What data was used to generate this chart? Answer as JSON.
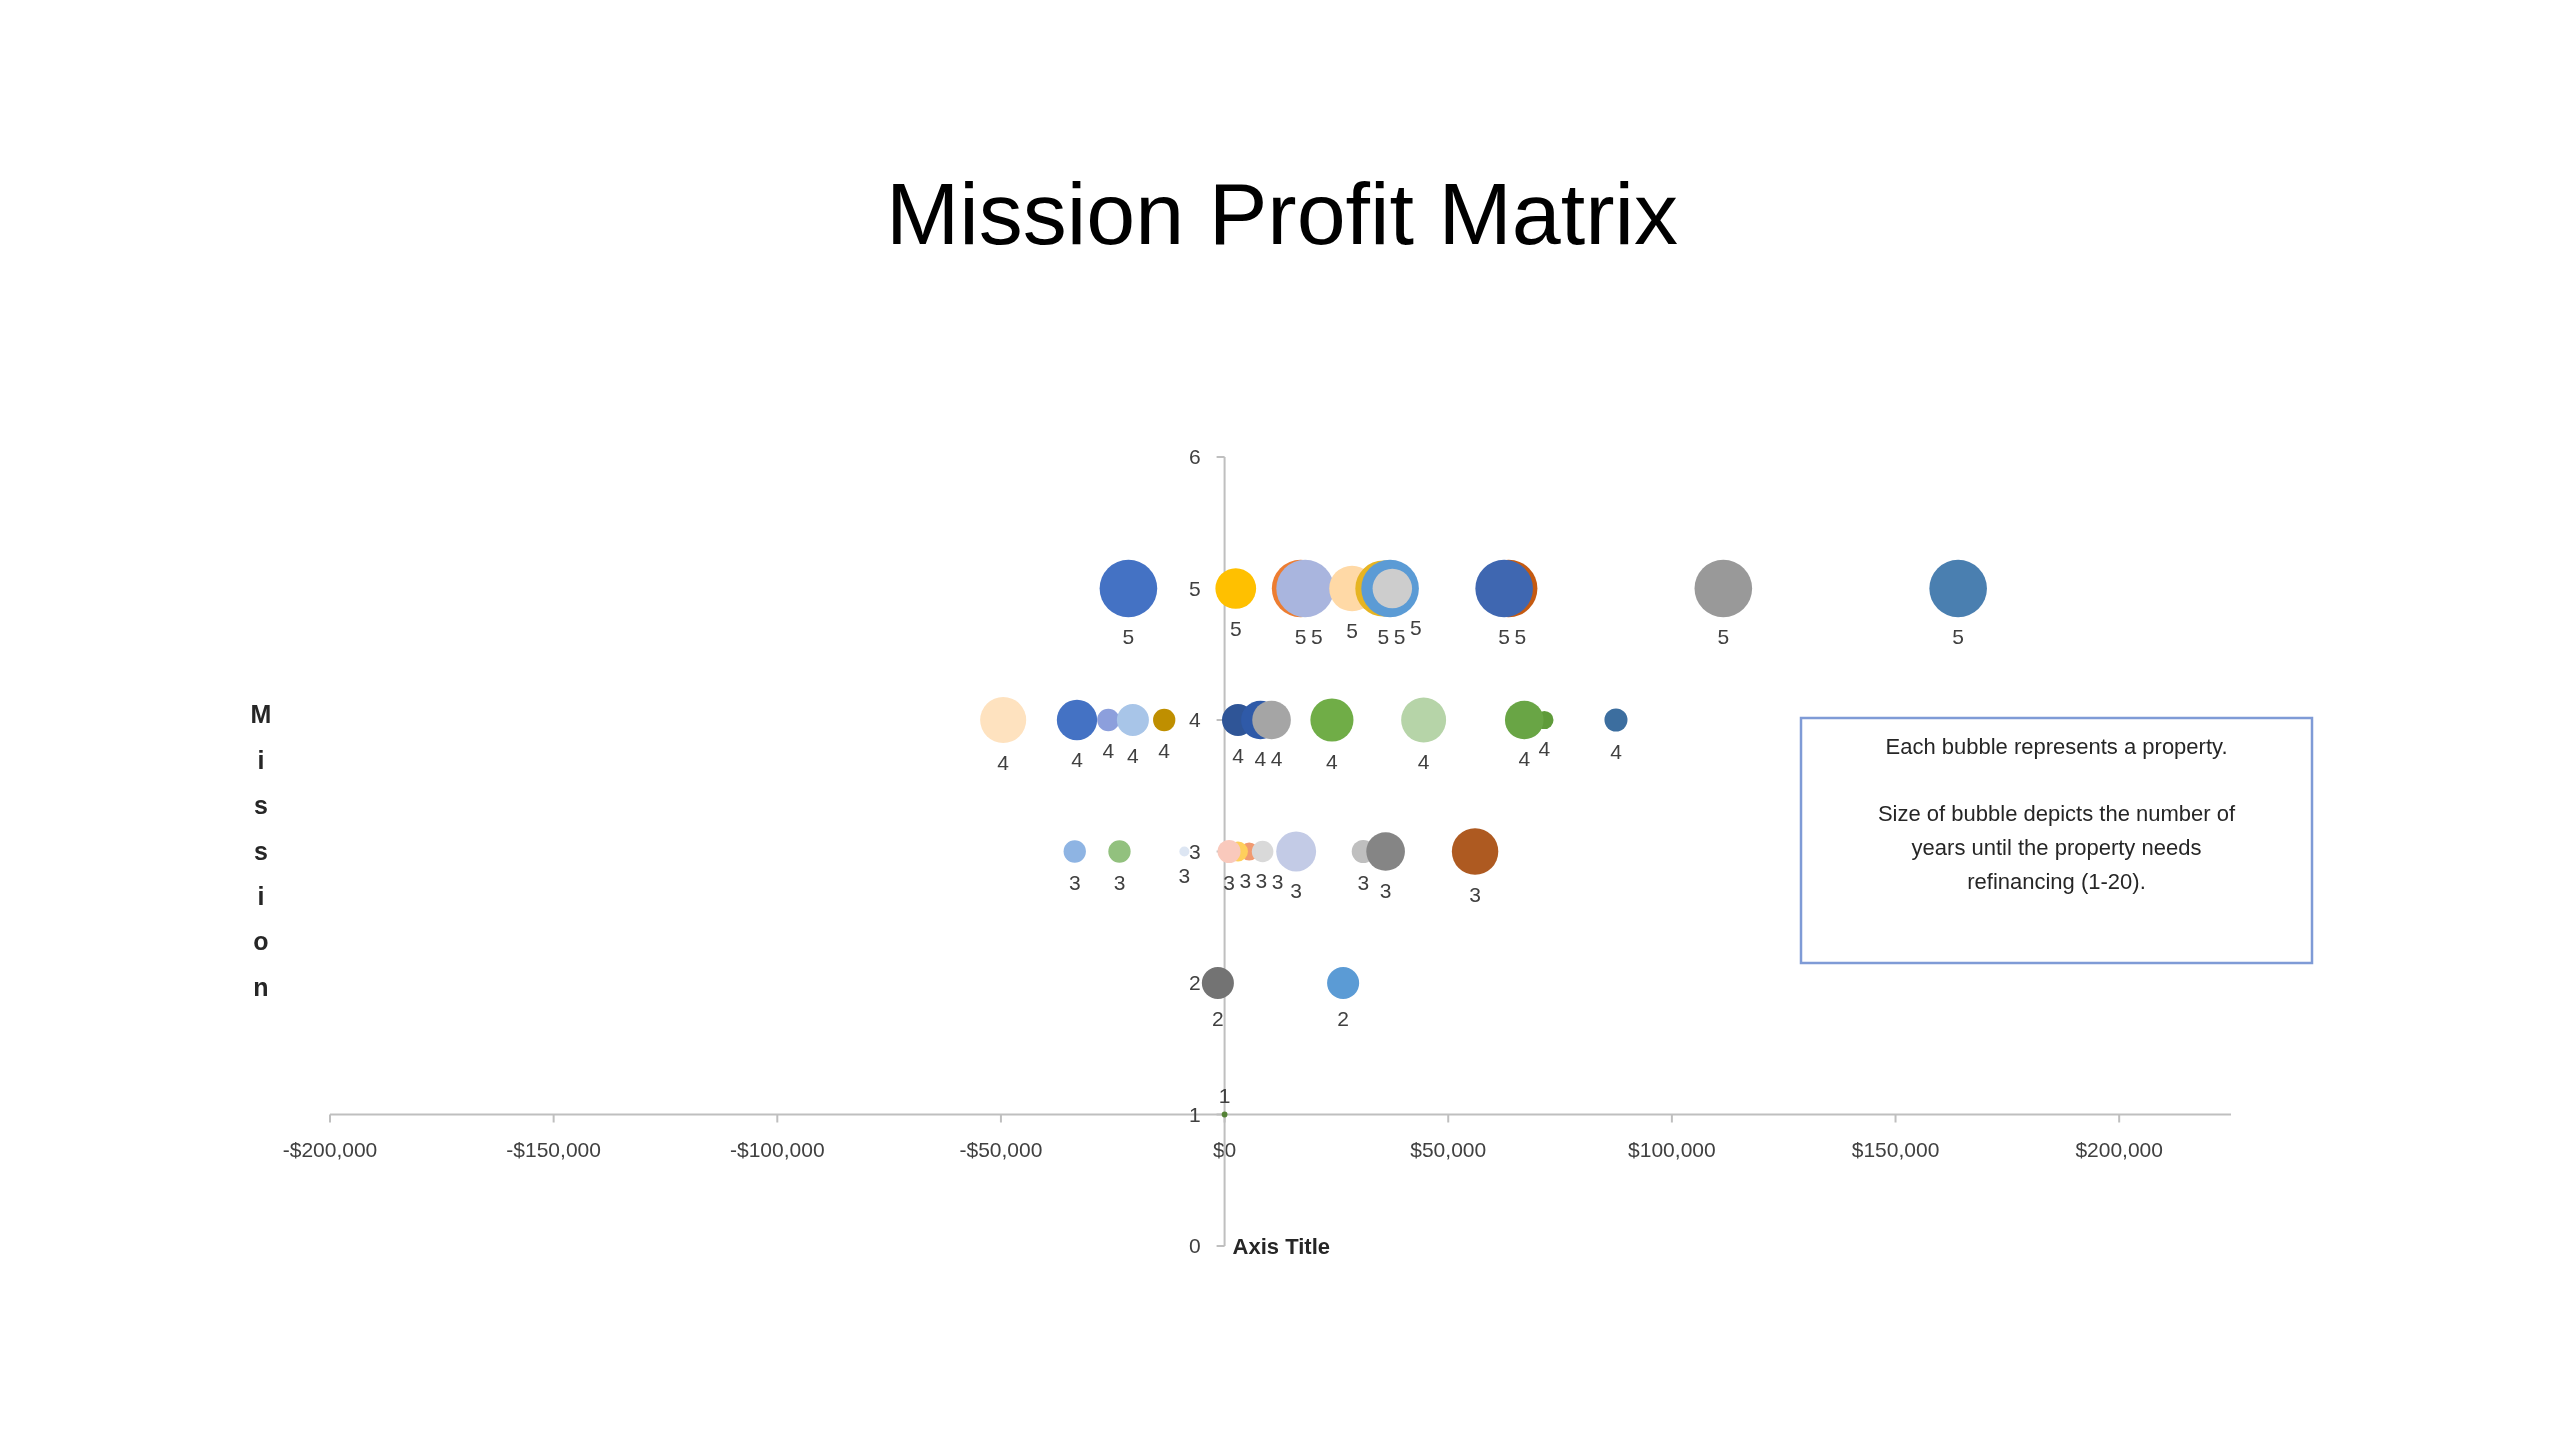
{
  "chart_data": {
    "type": "bubble",
    "title": "Mission Profit Matrix",
    "xlabel": "Axis Title",
    "ylabel": "Mission",
    "annotations": [
      "Each bubble represents a property.",
      "Size of bubble depicts the number of years until the property needs refinancing (1-20)."
    ],
    "x": [
      -1500,
      26500,
      -33500,
      -23500,
      -9000,
      5500,
      3000,
      1000,
      8500,
      16000,
      31000,
      36000,
      56000,
      -49500,
      -33000,
      -26000,
      -20500,
      -13500,
      3000,
      8000,
      10500,
      24000,
      44500,
      71500,
      67000,
      87500,
      -21500,
      2500,
      17000,
      18000,
      28500,
      35500,
      37000,
      37500,
      63500,
      62500,
      111500,
      164000,
      0
    ],
    "values": [
      2,
      2,
      3,
      3,
      3,
      3,
      3,
      3,
      3,
      3,
      3,
      3,
      3,
      4,
      4,
      4,
      4,
      4,
      4,
      4,
      4,
      4,
      4,
      4,
      4,
      4,
      5,
      5,
      5,
      5,
      5,
      5,
      5,
      5,
      5,
      5,
      5,
      5,
      1
    ],
    "sizes": [
      0.31,
      0.31,
      0.15,
      0.15,
      0.03,
      0.1,
      0.12,
      0.16,
      0.14,
      0.48,
      0.16,
      0.45,
      0.65,
      0.64,
      0.49,
      0.15,
      0.31,
      0.15,
      0.31,
      0.45,
      0.45,
      0.56,
      0.61,
      0.1,
      0.45,
      0.16,
      1,
      0.5,
      1,
      1,
      0.63,
      0.95,
      1,
      0.47,
      1,
      1,
      1,
      1,
      0.01
    ],
    "colors": [
      "#737373",
      "#5b9bd5",
      "#8eb4e3",
      "#92c17e",
      "#dde6f3",
      "#f19a70",
      "#ffcf5c",
      "#f9c9bc",
      "#d9d9d9",
      "#c3cbe6",
      "#bfbfbf",
      "#858585",
      "#ae5a21",
      "#fee2bf",
      "#4472c4",
      "#8c9fdc",
      "#a8c5e8",
      "#bf8f00",
      "#2f5597",
      "#2f5aa8",
      "#a5a5a5",
      "#70ad47",
      "#b6d4a8",
      "#5f9b3a",
      "#69a545",
      "#3c6e9f",
      "#4472c4",
      "#ffc000",
      "#ed7d31",
      "#a9b5de",
      "#ffd9a6",
      "#e6b422",
      "#5b9bd5",
      "#cdcdcd",
      "#c55a11",
      "#3f67b1",
      "#999999",
      "#4a7fb0",
      "#548235"
    ],
    "data_labels": true,
    "xlim": [
      -200000,
      225000
    ],
    "xticks": [
      {
        "value": -200000,
        "label": "-$200,000"
      },
      {
        "value": -150000,
        "label": "-$150,000"
      },
      {
        "value": -100000,
        "label": "-$100,000"
      },
      {
        "value": -50000,
        "label": "-$50,000"
      },
      {
        "value": 0,
        "label": "$0"
      },
      {
        "value": 50000,
        "label": "$50,000"
      },
      {
        "value": 100000,
        "label": "$100,000"
      },
      {
        "value": 150000,
        "label": "$150,000"
      },
      {
        "value": 200000,
        "label": "$200,000"
      }
    ],
    "ylim": [
      0,
      6
    ],
    "yticks": [
      0,
      1,
      2,
      3,
      4,
      5,
      6
    ]
  }
}
